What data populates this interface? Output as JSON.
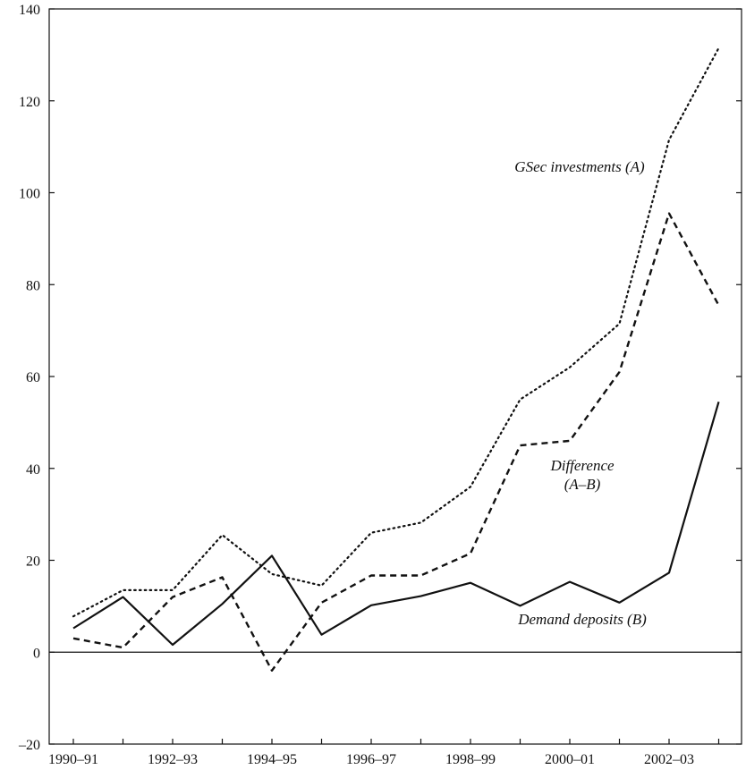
{
  "chart_data": {
    "type": "line",
    "title": "",
    "xlabel": "",
    "ylabel": "",
    "x_tick_labels": [
      "1990–91",
      "1992–93",
      "1994–95",
      "1996–97",
      "1998–99",
      "2000–01",
      "2002–03"
    ],
    "x": [
      "1990–91",
      "1991–92",
      "1992–93",
      "1993–94",
      "1994–95",
      "1995–96",
      "1996–97",
      "1997–98",
      "1998–99",
      "1999–00",
      "2000–01",
      "2001–02",
      "2002–03",
      "2003–04"
    ],
    "ylim": [
      -20,
      140
    ],
    "yticks": [
      -20,
      0,
      20,
      40,
      60,
      80,
      100,
      120,
      140
    ],
    "grid": false,
    "legend": "none",
    "series": [
      {
        "name": "GSec investments (A)",
        "label_lines": [
          "GSec investments (A)"
        ],
        "style": "dotted",
        "values": [
          7.8,
          13.5,
          13.5,
          25.5,
          17.0,
          14.5,
          26.0,
          28.2,
          36.0,
          55.0,
          62.0,
          71.5,
          111.5,
          131.5
        ]
      },
      {
        "name": "Difference (A–B)",
        "label_lines": [
          "Difference",
          "(A–B)"
        ],
        "style": "dashed",
        "values": [
          3.0,
          1.0,
          12.0,
          16.3,
          -4.0,
          10.8,
          16.7,
          16.7,
          21.5,
          45.0,
          46.0,
          61.0,
          95.5,
          75.5
        ]
      },
      {
        "name": "Demand deposits (B)",
        "label_lines": [
          "Demand deposits (B)"
        ],
        "style": "solid",
        "values": [
          5.2,
          12.0,
          1.6,
          10.5,
          21.0,
          3.8,
          10.2,
          12.2,
          15.1,
          10.1,
          15.3,
          10.8,
          17.3,
          54.5
        ]
      }
    ]
  }
}
